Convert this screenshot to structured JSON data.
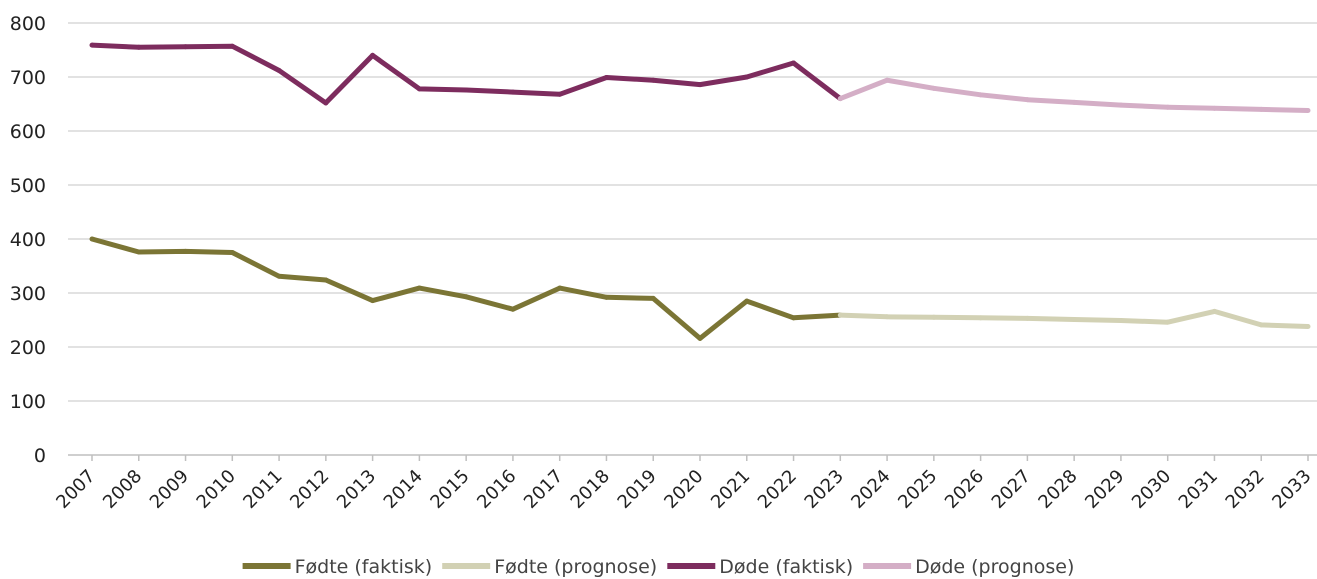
{
  "chart_data": {
    "type": "line",
    "title": "",
    "xlabel": "",
    "ylabel": "",
    "ylim": [
      0,
      800
    ],
    "yticks": [
      0,
      100,
      200,
      300,
      400,
      500,
      600,
      700,
      800
    ],
    "grid": true,
    "legend_position": "bottom",
    "categories": [
      "2007",
      "2008",
      "2009",
      "2010",
      "2011",
      "2012",
      "2013",
      "2014",
      "2015",
      "2016",
      "2017",
      "2018",
      "2019",
      "2020",
      "2021",
      "2022",
      "2023",
      "2024",
      "2025",
      "2026",
      "2027",
      "2028",
      "2029",
      "2030",
      "2031",
      "2032",
      "2033"
    ],
    "series": [
      {
        "name": "Fødte (faktisk)",
        "color": "#7b7535",
        "values": [
          400,
          376,
          377,
          375,
          331,
          324,
          286,
          309,
          293,
          270,
          309,
          292,
          290,
          216,
          285,
          254,
          259,
          null,
          null,
          null,
          null,
          null,
          null,
          null,
          null,
          null,
          null
        ]
      },
      {
        "name": "Fødte (prognose)",
        "color": "#d2d1b4",
        "values": [
          null,
          null,
          null,
          null,
          null,
          null,
          null,
          null,
          null,
          null,
          null,
          null,
          null,
          null,
          null,
          null,
          259,
          256,
          255,
          254,
          253,
          251,
          249,
          246,
          266,
          241,
          238
        ]
      },
      {
        "name": "Døde (faktisk)",
        "color": "#7d2c5e",
        "values": [
          759,
          755,
          756,
          757,
          712,
          652,
          740,
          678,
          676,
          672,
          668,
          699,
          694,
          686,
          700,
          726,
          660,
          null,
          null,
          null,
          null,
          null,
          null,
          null,
          null,
          null,
          null
        ]
      },
      {
        "name": "Døde (prognose)",
        "color": "#d4aec6",
        "values": [
          null,
          null,
          null,
          null,
          null,
          null,
          null,
          null,
          null,
          null,
          null,
          null,
          null,
          null,
          null,
          null,
          660,
          694,
          679,
          667,
          658,
          653,
          648,
          644,
          642,
          640,
          638
        ]
      }
    ]
  }
}
